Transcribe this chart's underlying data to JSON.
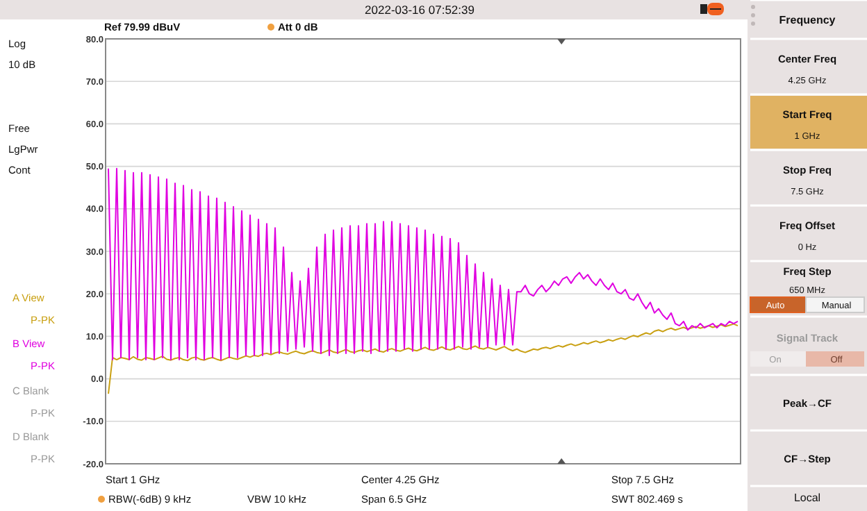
{
  "chart_data": {
    "type": "line",
    "categories": [
      null,
      null,
      null,
      null,
      null,
      null,
      null,
      null,
      null,
      null,
      null,
      null,
      null,
      null,
      null,
      null,
      null,
      null,
      null,
      null,
      null,
      null,
      null,
      null,
      null,
      null,
      null,
      null,
      null,
      null,
      null,
      null,
      null,
      null,
      null,
      null,
      null,
      null,
      null,
      null,
      null,
      null,
      null,
      null,
      null,
      null,
      null,
      null,
      null,
      null,
      null,
      null,
      null,
      null,
      null,
      null,
      null,
      null,
      null,
      null,
      null,
      null,
      null,
      null,
      null,
      null,
      null,
      null,
      null,
      null,
      null,
      null,
      null,
      null,
      null,
      null,
      null,
      null,
      null,
      null,
      null,
      null,
      null,
      null,
      null,
      null,
      null,
      null,
      null,
      null,
      null,
      null,
      null,
      null,
      null,
      null,
      null,
      null,
      null,
      null,
      null,
      null,
      null,
      null,
      null,
      null,
      null,
      null,
      null,
      null,
      null,
      null,
      null,
      null,
      null,
      null,
      null,
      null,
      null,
      null,
      null,
      null,
      null,
      null,
      null,
      null,
      null,
      null,
      null,
      null,
      null,
      null,
      null,
      null,
      null,
      null,
      null,
      null,
      null,
      null,
      null,
      null,
      null,
      null,
      null,
      null,
      null,
      null,
      null,
      null,
      null,
      null
    ],
    "ylim": [
      -20,
      80
    ],
    "yticks": [
      {
        "value": -20,
        "label": "-20.0"
      },
      {
        "value": -10,
        "label": "-10.0"
      },
      {
        "value": 0,
        "label": "0.0"
      },
      {
        "value": 10,
        "label": "10.0"
      },
      {
        "value": 20,
        "label": "20.0"
      },
      {
        "value": 30,
        "label": "30.0"
      },
      {
        "value": 40,
        "label": "40.0"
      },
      {
        "value": 50,
        "label": "50.0"
      },
      {
        "value": 60,
        "label": "60.0"
      },
      {
        "value": 70,
        "label": "70.0"
      },
      {
        "value": 80,
        "label": "80.0"
      }
    ],
    "tick_labels": "y",
    "grid": "y",
    "marker": "none",
    "line_style": "solid",
    "series": [
      {
        "color": "#c9a012",
        "values": [
          -3.5,
          5,
          4.5,
          5,
          4.8,
          4.5,
          5.2,
          4.6,
          4.4,
          5,
          4.8,
          4.5,
          4.9,
          5.3,
          4.6,
          4.4,
          4.8,
          5,
          4.5,
          4.3,
          4.9,
          5.1,
          4.6,
          4.4,
          4.8,
          5,
          4.6,
          4.3,
          4.7,
          5.1,
          4.8,
          4.6,
          5,
          5.4,
          5.1,
          5.5,
          5.3,
          5.8,
          6,
          5.7,
          6.1,
          6.3,
          6,
          5.8,
          6.2,
          6.5,
          6.1,
          5.9,
          6.3,
          6.6,
          6.2,
          6,
          6.4,
          6.8,
          6.3,
          6.1,
          6.5,
          6.9,
          6.4,
          6.2,
          6.6,
          6.8,
          6.4,
          6.7,
          7,
          6.5,
          6.3,
          6.8,
          7.1,
          6.7,
          6.5,
          6.9,
          7.2,
          6.8,
          6.6,
          7,
          7.4,
          6.9,
          6.7,
          7.1,
          7.5,
          7,
          6.8,
          7.2,
          7.6,
          7.1,
          6.9,
          7.3,
          7.7,
          7.2,
          7,
          7.4,
          7.1,
          6.8,
          7.2,
          7.6,
          7,
          6.6,
          7,
          6.5,
          6.2,
          6.6,
          7,
          6.8,
          7.2,
          7.4,
          7.1,
          7.5,
          7.8,
          7.5,
          7.9,
          8.2,
          7.8,
          8.1,
          8.5,
          8.2,
          8.6,
          8.9,
          8.5,
          8.8,
          9.2,
          8.9,
          9.3,
          9.6,
          9.3,
          9.8,
          10.2,
          9.9,
          10.4,
          10.8,
          10.5,
          11.2,
          11.5,
          11.1,
          11.6,
          11.9,
          11.5,
          11.8,
          12.1,
          11.7,
          12,
          12.3,
          11.9,
          12.2,
          12.5,
          12.1,
          12.4,
          12.7,
          12.3,
          12.6,
          12.9,
          12.5
        ]
      },
      {
        "color": "#e000e0",
        "values": [
          49.5,
          4.5,
          49.5,
          5,
          49,
          4.5,
          48.5,
          5,
          48.5,
          4.5,
          48,
          4.5,
          47.5,
          5,
          47,
          4.5,
          46,
          4.5,
          45.5,
          5,
          44.5,
          4.5,
          44,
          4.5,
          43,
          5,
          42.5,
          4.5,
          41.5,
          5,
          40.5,
          5,
          39.5,
          5.5,
          38.5,
          5.5,
          37.5,
          5.5,
          36.5,
          6,
          35.5,
          6,
          31,
          6.5,
          25,
          7,
          23,
          7.5,
          26,
          6.5,
          31,
          6,
          34,
          5.5,
          35,
          6,
          35.5,
          6,
          36,
          6,
          36,
          6.5,
          36.5,
          6,
          36.5,
          6.5,
          37,
          6.5,
          37,
          6.5,
          36.5,
          7,
          36,
          6.5,
          35.5,
          7,
          35,
          7,
          34,
          7,
          33.5,
          7,
          33,
          7,
          32,
          7.5,
          29,
          7,
          27,
          7.5,
          25,
          7.5,
          23.5,
          8,
          22,
          8,
          21,
          8,
          20.5,
          20.5,
          22,
          20,
          19.5,
          21,
          22,
          20.5,
          21.5,
          23,
          22,
          23.5,
          24,
          22.5,
          24,
          25,
          23.5,
          24.5,
          23,
          22,
          23.5,
          22,
          21,
          22.5,
          20.5,
          20,
          21,
          19,
          18.5,
          20,
          18,
          16.5,
          18,
          15.5,
          16.5,
          15,
          14,
          15.5,
          13,
          12.5,
          13.5,
          11.5,
          12.5,
          12,
          13,
          12,
          12.5,
          13,
          12,
          13,
          12.5,
          13.5,
          13,
          13.5
        ]
      }
    ],
    "annotations": [
      "2022-03-16 07:52:39",
      "Ref  79.99 dBuV",
      "Att  0 dB",
      "Log",
      "10 dB",
      "Free",
      "LgPwr",
      "Cont",
      "A  View",
      "P-PK",
      "B  View",
      "P-PK",
      "C  Blank",
      "P-PK",
      "D  Blank",
      "P-PK",
      "Start  1 GHz",
      "Center  4.25 GHz",
      "Stop  7.5 GHz",
      "RBW(-6dB)  9 kHz",
      "VBW  10 kHz",
      "Span  6.5 GHz",
      "SWT  802.469 s",
      "Frequency",
      "Center Freq",
      "4.25 GHz",
      "Start Freq",
      "1 GHz",
      "Stop Freq",
      "7.5 GHz",
      "Freq Offset",
      "0 Hz",
      "Freq Step",
      "650 MHz",
      "Auto",
      "Manual",
      "Signal Track",
      "On",
      "Off",
      "Peak→CF",
      "CF→Step",
      "Local"
    ]
  }
}
